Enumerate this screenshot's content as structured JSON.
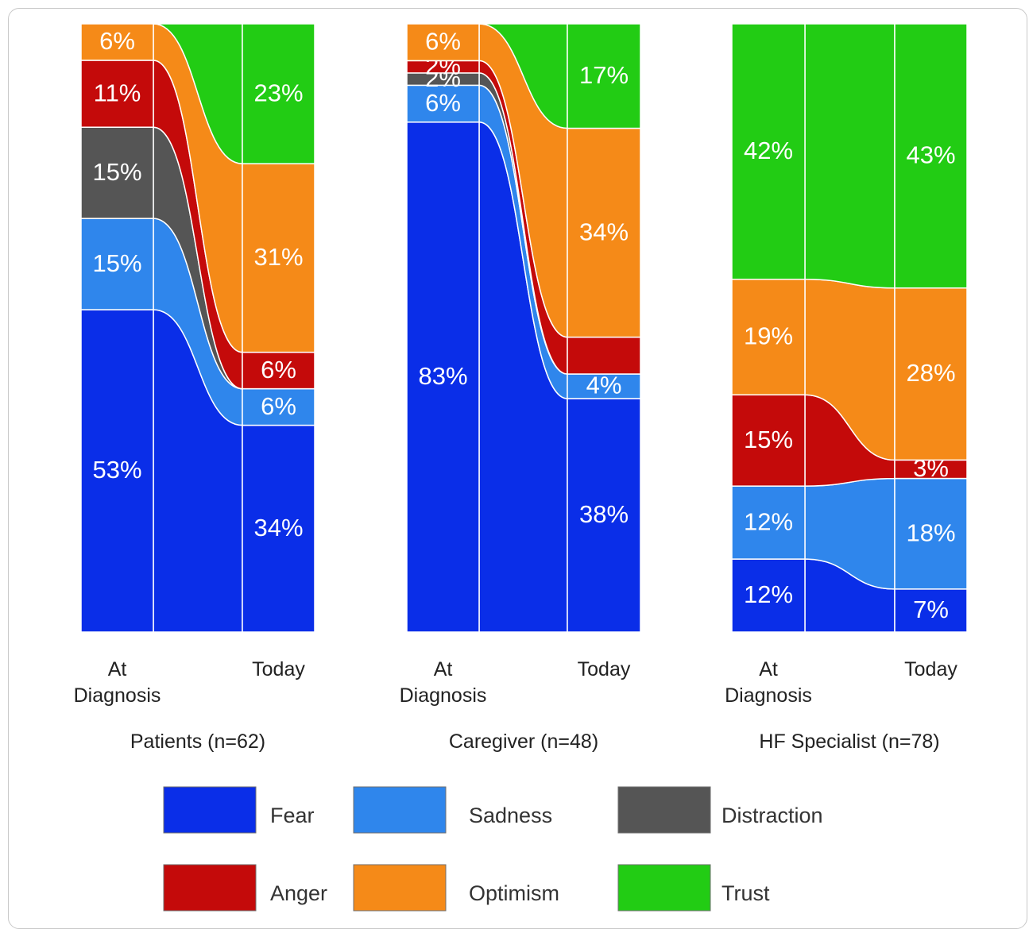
{
  "chart_data": {
    "type": "area",
    "categories": [
      "At Diagnosis",
      "Today"
    ],
    "emotions": [
      "Fear",
      "Sadness",
      "Distraction",
      "Anger",
      "Optimism",
      "Trust"
    ],
    "colors": {
      "Fear": "#0a2ee8",
      "Sadness": "#2f86ec",
      "Distraction": "#555555",
      "Anger": "#c40a0a",
      "Optimism": "#f58a18",
      "Trust": "#22cc14"
    },
    "panels": [
      {
        "title": "Patients (n=62)",
        "at_diagnosis": {
          "Fear": 53,
          "Sadness": 15,
          "Distraction": 15,
          "Anger": 11,
          "Optimism": 6,
          "Trust": 0
        },
        "today": {
          "Fear": 34,
          "Sadness": 6,
          "Distraction": 0,
          "Anger": 6,
          "Optimism": 31,
          "Trust": 23
        },
        "at_diagnosis_labels": [
          "53%",
          "15%",
          "15%",
          "11%",
          "6%",
          ""
        ],
        "today_labels": [
          "34%",
          "6%",
          "",
          "6%",
          "31%",
          "23%"
        ]
      },
      {
        "title": "Caregiver (n=48)",
        "at_diagnosis": {
          "Fear": 83,
          "Sadness": 6,
          "Distraction": 2,
          "Anger": 2,
          "Optimism": 6,
          "Trust": 0
        },
        "today": {
          "Fear": 38,
          "Sadness": 4,
          "Distraction": 0,
          "Anger": 6,
          "Optimism": 34,
          "Trust": 17
        },
        "at_diagnosis_labels": [
          "83%",
          "6%",
          "2%",
          "2%",
          "6%",
          ""
        ],
        "today_labels": [
          "38%",
          "4%",
          "",
          "",
          "34%",
          "17%"
        ]
      },
      {
        "title": "HF Specialist (n=78)",
        "at_diagnosis": {
          "Fear": 12,
          "Sadness": 12,
          "Distraction": 0,
          "Anger": 15,
          "Optimism": 19,
          "Trust": 42
        },
        "today": {
          "Fear": 7,
          "Sadness": 18,
          "Distraction": 0,
          "Anger": 3,
          "Optimism": 28,
          "Trust": 43
        },
        "at_diagnosis_labels": [
          "12%",
          "12%",
          "",
          "15%",
          "19%",
          "42%"
        ],
        "today_labels": [
          "7%",
          "18%",
          "",
          "3%",
          "28%",
          "43%"
        ]
      }
    ],
    "axis_labels": {
      "left_line1": "At",
      "left_line2": "Diagnosis",
      "right": "Today"
    },
    "legend": [
      "Fear",
      "Sadness",
      "Distraction",
      "Anger",
      "Optimism",
      "Trust"
    ]
  }
}
